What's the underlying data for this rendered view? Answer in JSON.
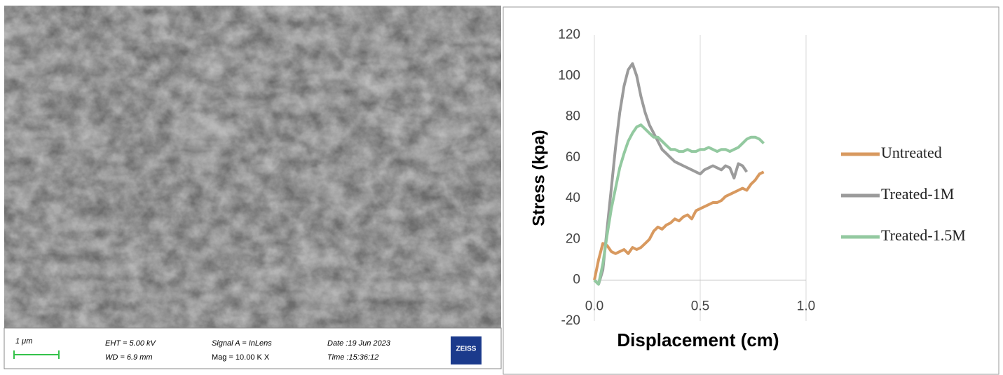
{
  "sem": {
    "scale": "1 μm",
    "eht": "EHT = 5.00 kV",
    "wd": "WD = 6.9 mm",
    "signal": "Signal A = InLens",
    "mag": "Mag = 10.00 K X",
    "date": "Date :19 Jun 2023",
    "time": "Time :15:36:12",
    "brand": "ZEISS"
  },
  "chart_data": {
    "type": "line",
    "x_label": "Displacement (cm)",
    "y_label": "Stress (kpa)",
    "x": [
      0,
      0.02,
      0.04,
      0.06,
      0.08,
      0.1,
      0.12,
      0.14,
      0.16,
      0.18,
      0.2,
      0.22,
      0.24,
      0.26,
      0.28,
      0.3,
      0.32,
      0.34,
      0.36,
      0.38,
      0.4,
      0.42,
      0.44,
      0.46,
      0.48,
      0.5,
      0.52,
      0.54,
      0.56,
      0.58,
      0.6,
      0.62,
      0.64,
      0.66,
      0.68,
      0.7,
      0.72,
      0.74,
      0.76,
      0.78,
      0.8
    ],
    "series": [
      {
        "name": "Untreated",
        "color": "#d8995f",
        "values": [
          0,
          10,
          18,
          17,
          14,
          13,
          14,
          15,
          13,
          16,
          15,
          16,
          18,
          20,
          24,
          26,
          25,
          27,
          28,
          30,
          29,
          31,
          32,
          30,
          34,
          35,
          36,
          37,
          38,
          38,
          39,
          41,
          42,
          43,
          44,
          45,
          44,
          47,
          49,
          52,
          53
        ]
      },
      {
        "name": "Treated-1M",
        "color": "#9b9b9b",
        "values": [
          0,
          -2,
          5,
          25,
          45,
          65,
          82,
          95,
          103,
          106,
          100,
          90,
          82,
          76,
          72,
          68,
          64,
          62,
          60,
          58,
          57,
          56,
          55,
          54,
          53,
          52,
          54,
          55,
          56,
          55,
          54,
          56,
          55,
          50,
          57,
          56,
          53,
          null,
          null,
          null,
          null
        ]
      },
      {
        "name": "Treated-1.5M",
        "color": "#93c9a0",
        "values": [
          0,
          -2,
          8,
          22,
          35,
          45,
          55,
          62,
          68,
          72,
          75,
          76,
          74,
          72,
          70,
          70,
          68,
          66,
          64,
          64,
          63,
          63,
          64,
          63,
          63,
          64,
          64,
          65,
          64,
          63,
          64,
          64,
          63,
          64,
          65,
          67,
          69,
          70,
          70,
          69,
          67
        ]
      }
    ],
    "xlim": [
      0,
      1
    ],
    "xticks": [
      {
        "value": 0,
        "label": "0.0"
      },
      {
        "value": 0.5,
        "label": "0.5"
      },
      {
        "value": 1,
        "label": "1.0"
      }
    ],
    "ylim": [
      -20,
      120
    ],
    "yticks": [
      -20,
      0,
      20,
      40,
      60,
      80,
      100,
      120
    ],
    "grid": "x",
    "legend": "right"
  }
}
